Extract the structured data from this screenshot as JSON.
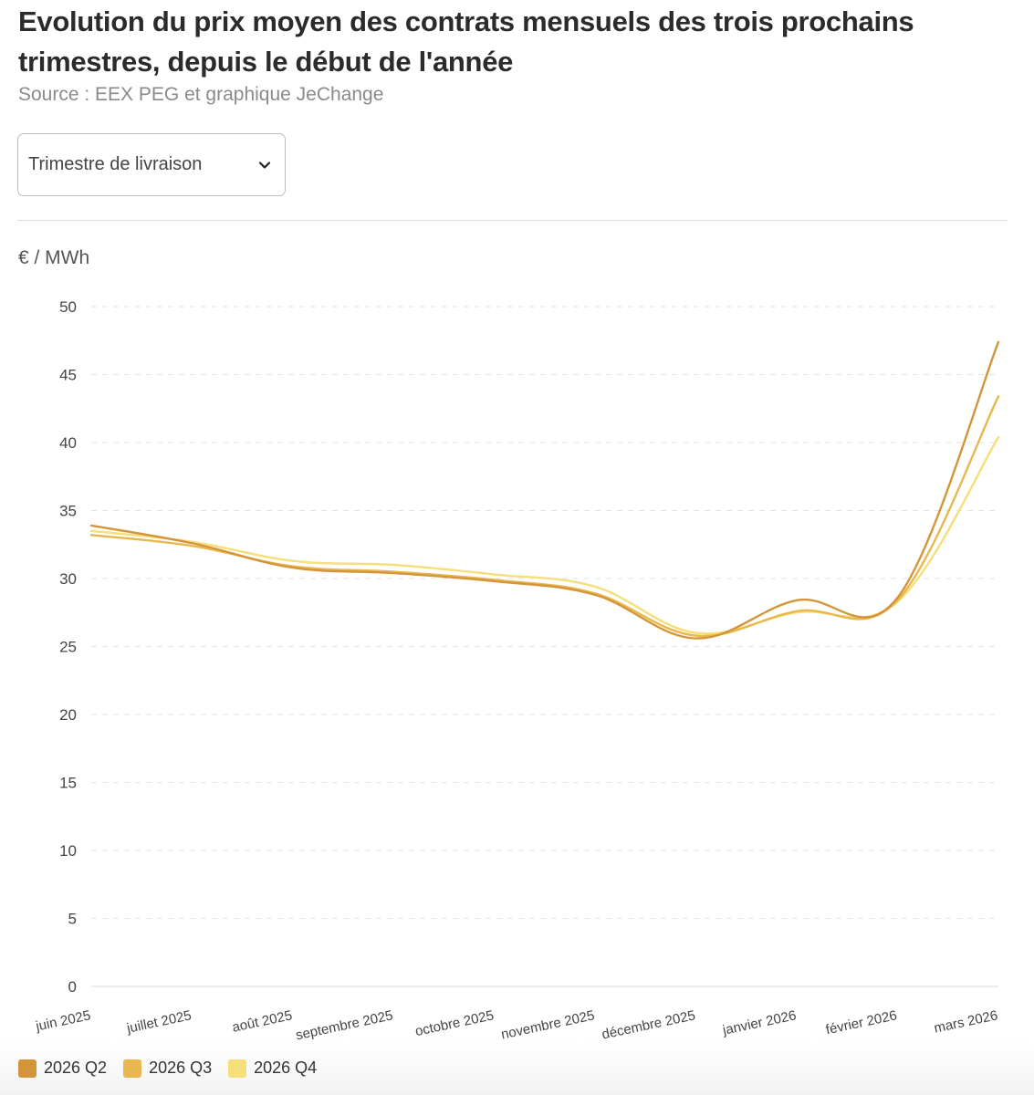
{
  "header": {
    "title": "Evolution du prix moyen des contrats mensuels des trois prochains trimestres, depuis le début de l'année",
    "source": "Source : EEX PEG et graphique JeChange"
  },
  "filter": {
    "selected": "Trimestre de livraison",
    "icon": "chevron-down-icon"
  },
  "chart_data": {
    "type": "line",
    "title": "Evolution du prix moyen des contrats mensuels des trois prochains trimestres, depuis le début de l'année",
    "ylabel": "€ / MWh",
    "xlabel": "",
    "ylim": [
      0,
      50
    ],
    "yticks": [
      0,
      5,
      10,
      15,
      20,
      25,
      30,
      35,
      40,
      45,
      50
    ],
    "grid": true,
    "legend_position": "bottom-left",
    "categories": [
      "juin 2025",
      "juillet 2025",
      "août 2025",
      "septembre 2025",
      "octobre 2025",
      "novembre 2025",
      "décembre 2025",
      "janvier 2026",
      "février 2026",
      "mars 2026"
    ],
    "series": [
      {
        "name": "2026 Q2",
        "color": "#d4953a",
        "values": [
          33.9,
          32.6,
          30.8,
          30.4,
          29.8,
          28.8,
          25.6,
          28.4,
          28.6,
          47.4
        ]
      },
      {
        "name": "2026 Q3",
        "color": "#e8b84f",
        "values": [
          33.2,
          32.4,
          30.9,
          30.5,
          29.9,
          28.9,
          25.8,
          27.6,
          28.4,
          43.4
        ]
      },
      {
        "name": "2026 Q4",
        "color": "#f6de7a",
        "values": [
          33.5,
          32.7,
          31.3,
          31.0,
          30.3,
          29.4,
          26.0,
          27.5,
          28.3,
          40.4
        ]
      }
    ]
  }
}
